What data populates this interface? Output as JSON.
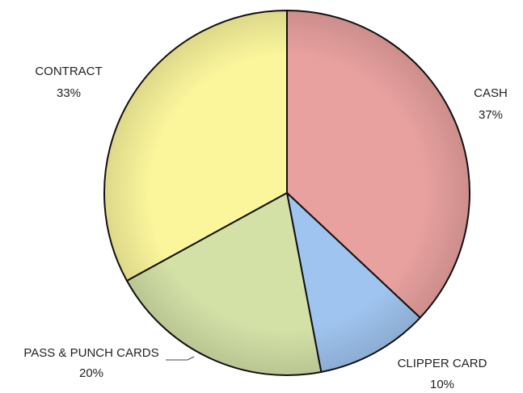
{
  "chart_data": {
    "type": "pie",
    "categories": [
      "CASH",
      "CLIPPER CARD",
      "PASS & PUNCH CARDS",
      "CONTRACT"
    ],
    "values": [
      37,
      10,
      20,
      33
    ],
    "value_labels": [
      "37%",
      "10%",
      "20%",
      "33%"
    ],
    "colors": [
      "#e8a19f",
      "#9fc4ef",
      "#d3e1a7",
      "#fbf69c"
    ]
  }
}
